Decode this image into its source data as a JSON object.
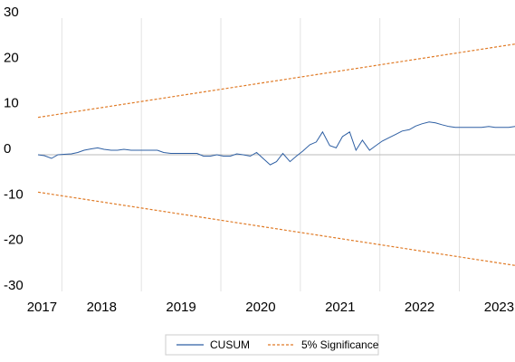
{
  "chart_data": {
    "type": "line",
    "xlim": [
      2017.7,
      2023.7
    ],
    "ylim": [
      -30,
      30
    ],
    "yticks": [
      30,
      20,
      10,
      0,
      -10,
      -20,
      -30
    ],
    "xticks": [
      {
        "value": 2017.75,
        "label": "2017"
      },
      {
        "value": 2018.5,
        "label": "2018"
      },
      {
        "value": 2019.5,
        "label": "2019"
      },
      {
        "value": 2020.5,
        "label": "2020"
      },
      {
        "value": 2021.5,
        "label": "2021"
      },
      {
        "value": 2022.5,
        "label": "2022"
      },
      {
        "value": 2023.5,
        "label": "2023"
      }
    ],
    "xgrid": [
      2018,
      2019,
      2020,
      2021,
      2022,
      2023
    ],
    "series": [
      {
        "name": "CUSUM",
        "color": "#2e5fa3",
        "style": "solid",
        "x": [
          2017.7,
          2017.78,
          2017.87,
          2017.95,
          2018.03,
          2018.12,
          2018.2,
          2018.28,
          2018.37,
          2018.45,
          2018.53,
          2018.62,
          2018.7,
          2018.78,
          2018.87,
          2018.95,
          2019.03,
          2019.12,
          2019.2,
          2019.28,
          2019.37,
          2019.45,
          2019.53,
          2019.62,
          2019.7,
          2019.78,
          2019.87,
          2019.95,
          2020.03,
          2020.12,
          2020.2,
          2020.28,
          2020.37,
          2020.45,
          2020.53,
          2020.62,
          2020.7,
          2020.78,
          2020.87,
          2020.95,
          2021.03,
          2021.12,
          2021.2,
          2021.28,
          2021.37,
          2021.45,
          2021.53,
          2021.62,
          2021.7,
          2021.78,
          2021.87,
          2021.95,
          2022.03,
          2022.12,
          2022.2,
          2022.28,
          2022.37,
          2022.45,
          2022.53,
          2022.62,
          2022.7,
          2022.78,
          2022.87,
          2022.95,
          2023.03,
          2023.12,
          2023.2,
          2023.28,
          2023.37,
          2023.45,
          2023.53,
          2023.62,
          2023.7
        ],
        "values": [
          0,
          -0.2,
          -0.8,
          0,
          0.1,
          0.2,
          0.5,
          1,
          1.3,
          1.5,
          1.2,
          1,
          1,
          1.2,
          1,
          1,
          1,
          1,
          1,
          0.5,
          0.3,
          0.3,
          0.3,
          0.3,
          0.3,
          -0.3,
          -0.3,
          0,
          -0.3,
          -0.3,
          0.2,
          0,
          -0.3,
          0.5,
          -0.8,
          -2.2,
          -1.5,
          0.3,
          -1.5,
          -0.3,
          0.8,
          2.2,
          2.8,
          5,
          2,
          1.5,
          4,
          5,
          1,
          3.2,
          1,
          2,
          3,
          3.8,
          4.5,
          5.2,
          5.5,
          6.3,
          6.8,
          7.2,
          7,
          6.6,
          6.2,
          6,
          6,
          6,
          6,
          6,
          6.2,
          6,
          6,
          6,
          6.2
        ]
      },
      {
        "name": "5% Significance",
        "color": "#e07b27",
        "style": "dashed",
        "x": [
          2017.7,
          2023.7
        ],
        "values": [
          8.2,
          24.3
        ]
      },
      {
        "color": "#e07b27",
        "style": "dashed",
        "x": [
          2017.7,
          2023.7
        ],
        "values": [
          -8.2,
          -24.3
        ]
      }
    ]
  }
}
